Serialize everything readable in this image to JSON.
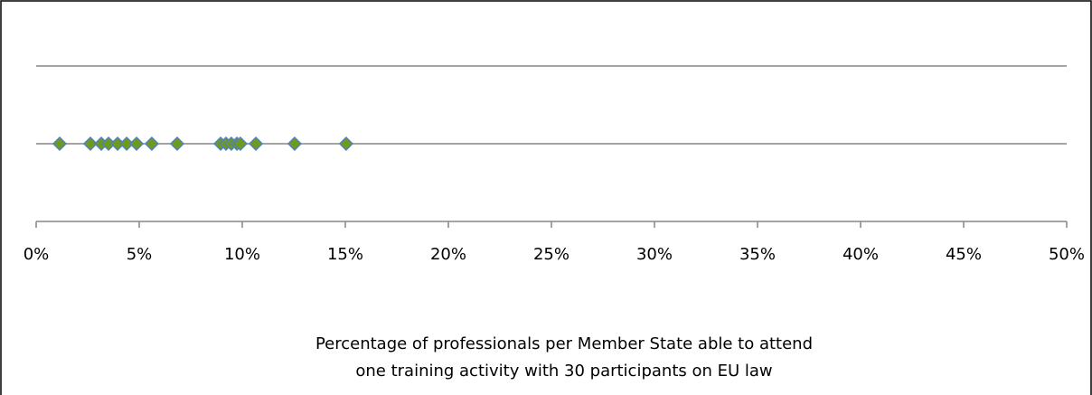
{
  "chart_data": {
    "type": "scatter",
    "x_label": [
      "Percentage of professionals per Member State able to attend",
      "one training activity with 30 participants on EU law"
    ],
    "x": [
      1.14,
      2.63,
      3.16,
      3.51,
      3.95,
      4.39,
      4.87,
      5.61,
      6.84,
      8.95,
      9.21,
      9.47,
      9.74,
      9.91,
      10.66,
      12.54,
      15.04
    ],
    "values": [
      1,
      1,
      1,
      1,
      1,
      1,
      1,
      1,
      1,
      1,
      1,
      1,
      1,
      1,
      1,
      1,
      1
    ],
    "color": "#6f9a1b",
    "edge_color": "#4f81bd",
    "xlim": [
      0,
      50
    ],
    "xticks": [
      {
        "value": 0,
        "label": "0%"
      },
      {
        "value": 5,
        "label": "5%"
      },
      {
        "value": 10,
        "label": "10%"
      },
      {
        "value": 15,
        "label": "15%"
      },
      {
        "value": 20,
        "label": "20%"
      },
      {
        "value": 25,
        "label": "25%"
      },
      {
        "value": 30,
        "label": "30%"
      },
      {
        "value": 35,
        "label": "35%"
      },
      {
        "value": 40,
        "label": "40%"
      },
      {
        "value": 45,
        "label": "45%"
      },
      {
        "value": 50,
        "label": "50%"
      }
    ],
    "ylim": [
      0,
      2
    ],
    "yticks": [
      0,
      1,
      2
    ],
    "grid": true
  }
}
